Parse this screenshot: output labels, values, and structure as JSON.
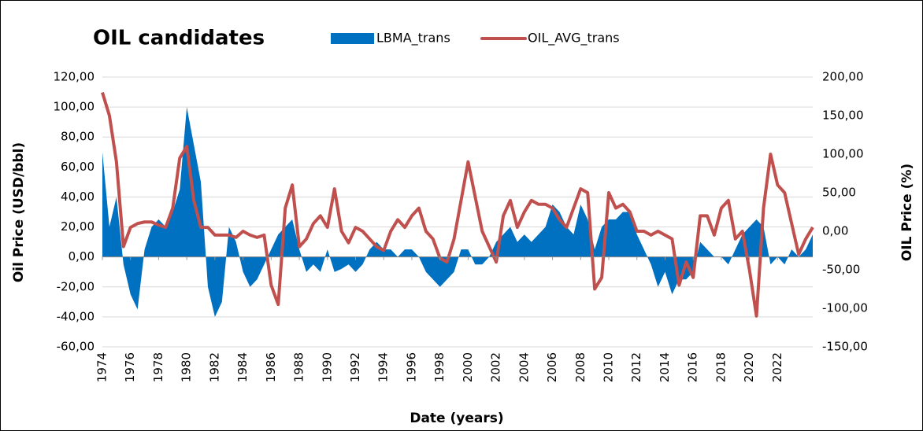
{
  "chart_data": {
    "type": "area-line",
    "title": "OIL candidates",
    "x_label": "Date (years)",
    "y_label": "Oil Price (USD/bbl)",
    "y2_label": "OIL Price (%)",
    "xlim": [
      1974,
      2024.5
    ],
    "xticks": [
      1974,
      1976,
      1978,
      1980,
      1982,
      1984,
      1986,
      1988,
      1990,
      1992,
      1994,
      1996,
      1998,
      2000,
      2002,
      2004,
      2006,
      2008,
      2010,
      2012,
      2014,
      2016,
      2018,
      2020,
      2022
    ],
    "ylim": [
      -60,
      120
    ],
    "yticks": [
      {
        "value": -60,
        "label": "-60,00"
      },
      {
        "value": -40,
        "label": "-40,00"
      },
      {
        "value": -20,
        "label": "-20,00"
      },
      {
        "value": 0,
        "label": "0,00"
      },
      {
        "value": 20,
        "label": "20,00"
      },
      {
        "value": 40,
        "label": "40,00"
      },
      {
        "value": 60,
        "label": "60,00"
      },
      {
        "value": 80,
        "label": "80,00"
      },
      {
        "value": 100,
        "label": "100,00"
      },
      {
        "value": 120,
        "label": "120,00"
      }
    ],
    "y2lim": [
      -150,
      200
    ],
    "y2ticks": [
      {
        "value": -150,
        "label": "-150,00"
      },
      {
        "value": -100,
        "label": "-100,00"
      },
      {
        "value": -50,
        "label": "-50,00"
      },
      {
        "value": 0,
        "label": "0,00"
      },
      {
        "value": 50,
        "label": "50,00"
      },
      {
        "value": 100,
        "label": "100,00"
      },
      {
        "value": 150,
        "label": "150,00"
      },
      {
        "value": 200,
        "label": "200,00"
      }
    ],
    "grid": true,
    "x": [
      1974,
      1974.5,
      1975,
      1975.5,
      1976,
      1976.5,
      1977,
      1977.5,
      1978,
      1978.5,
      1979,
      1979.5,
      1980,
      1980.5,
      1981,
      1981.5,
      1982,
      1982.5,
      1983,
      1983.5,
      1984,
      1984.5,
      1985,
      1985.5,
      1986,
      1986.5,
      1987,
      1987.5,
      1988,
      1988.5,
      1989,
      1989.5,
      1990,
      1990.5,
      1991,
      1991.5,
      1992,
      1992.5,
      1993,
      1993.5,
      1994,
      1994.5,
      1995,
      1995.5,
      1996,
      1996.5,
      1997,
      1997.5,
      1998,
      1998.5,
      1999,
      1999.5,
      2000,
      2000.5,
      2001,
      2001.5,
      2002,
      2002.5,
      2003,
      2003.5,
      2004,
      2004.5,
      2005,
      2005.5,
      2006,
      2006.5,
      2007,
      2007.5,
      2008,
      2008.5,
      2009,
      2009.5,
      2010,
      2010.5,
      2011,
      2011.5,
      2012,
      2012.5,
      2013,
      2013.5,
      2014,
      2014.5,
      2015,
      2015.5,
      2016,
      2016.5,
      2017,
      2017.5,
      2018,
      2018.5,
      2019,
      2019.5,
      2020,
      2020.5,
      2021,
      2021.5,
      2022,
      2022.5,
      2023,
      2023.5,
      2024,
      2024.5
    ],
    "series": [
      {
        "name": "LBMA_trans",
        "kind": "area",
        "color": "#0070c0",
        "values": [
          70,
          20,
          40,
          -5,
          -25,
          -35,
          5,
          20,
          25,
          20,
          30,
          45,
          100,
          75,
          50,
          -20,
          -40,
          -30,
          20,
          10,
          -10,
          -20,
          -15,
          -5,
          5,
          15,
          20,
          25,
          5,
          -10,
          -5,
          -10,
          5,
          -10,
          -8,
          -5,
          -10,
          -5,
          5,
          10,
          5,
          5,
          0,
          5,
          5,
          0,
          -10,
          -15,
          -20,
          -15,
          -10,
          5,
          5,
          -5,
          -5,
          0,
          10,
          15,
          20,
          10,
          15,
          10,
          15,
          20,
          35,
          30,
          20,
          15,
          35,
          25,
          5,
          20,
          25,
          25,
          30,
          30,
          15,
          5,
          -5,
          -20,
          -10,
          -25,
          -15,
          -15,
          -10,
          10,
          5,
          0,
          0,
          -5,
          5,
          15,
          20,
          25,
          20,
          -5,
          0,
          -5,
          5,
          0,
          5,
          15
        ]
      },
      {
        "name": "OIL_AVG_trans",
        "kind": "line",
        "axis": "y2",
        "color": "#c0504d",
        "values": [
          180,
          150,
          90,
          -20,
          5,
          10,
          12,
          12,
          8,
          5,
          30,
          95,
          110,
          40,
          5,
          5,
          -5,
          -5,
          -5,
          -8,
          0,
          -5,
          -8,
          -5,
          -70,
          -95,
          30,
          60,
          -20,
          -10,
          10,
          20,
          5,
          55,
          0,
          -15,
          5,
          0,
          -10,
          -20,
          -25,
          0,
          15,
          5,
          20,
          30,
          0,
          -10,
          -35,
          -40,
          -10,
          40,
          90,
          45,
          0,
          -20,
          -40,
          20,
          40,
          5,
          25,
          40,
          35,
          35,
          30,
          15,
          5,
          30,
          55,
          50,
          -75,
          -60,
          50,
          30,
          35,
          25,
          0,
          0,
          -5,
          0,
          -5,
          -10,
          -70,
          -40,
          -60,
          20,
          20,
          -5,
          30,
          40,
          -10,
          0,
          -50,
          -110,
          30,
          100,
          60,
          50,
          10,
          -30,
          -10,
          5
        ]
      }
    ]
  }
}
